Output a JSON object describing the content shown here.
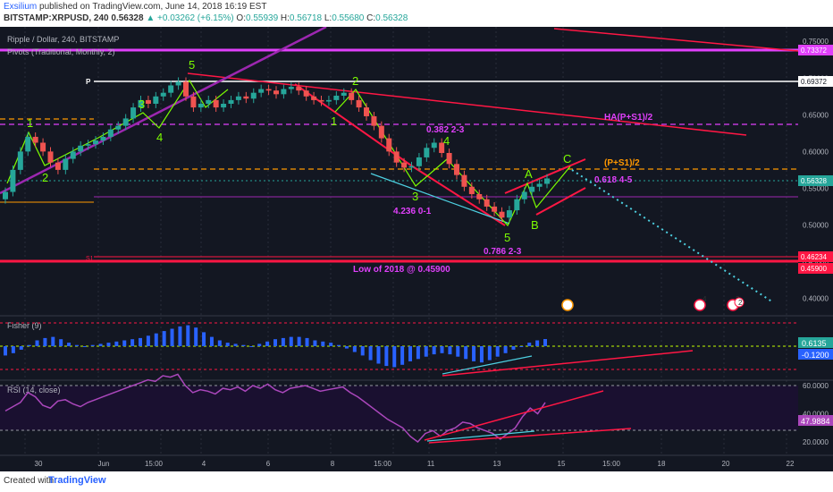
{
  "header": {
    "author": "Exsilium",
    "published": "published on TradingView.com, June 14, 2018 16:19 EST",
    "symbol": "BITSTAMP:XRPUSD, 240",
    "last": "0.56328",
    "change": "▲ +0.03262 (+6.15%)",
    "o_label": "O:",
    "o": "0.55939",
    "h_label": "H:",
    "h": "0.56718",
    "l_label": "L:",
    "l": "0.55680",
    "c_label": "C:",
    "c": "0.56328"
  },
  "legend": {
    "title": "Ripple / Dollar, 240, BITSTAMP",
    "pivots": "Pivots (Traditional, Monthly, 2)"
  },
  "footer": {
    "created": "Created with",
    "brand": "TradingView"
  },
  "colors": {
    "background": "#131722",
    "bull": "#26a69a",
    "bear": "#ef5350",
    "magenta": "#e040fb",
    "orange": "#ff9800",
    "red": "#ff1744",
    "white": "#ffffff",
    "green": "#7cfc00",
    "cyan": "#4dd0e1",
    "purple": "#9c27b0",
    "blue_hist": "#2962ff",
    "rsi": "#ab47bc"
  },
  "chart_data": [
    {
      "type": "candlestick",
      "title": "Ripple / Dollar, 240, BITSTAMP",
      "ylim": [
        0.38,
        0.76
      ],
      "y_ticks": [
        "0.75000",
        "0.70000",
        "0.65000",
        "0.60000",
        "0.55000",
        "0.50000",
        "0.45000",
        "0.40000"
      ],
      "x_ticks": [
        "30",
        "Jun",
        "15:00",
        "4",
        "6",
        "8",
        "15:00",
        "11",
        "13",
        "15",
        "15:00",
        "18",
        "20",
        "22"
      ],
      "price_labels": [
        {
          "text": "0.73372",
          "color": "#e040fb"
        },
        {
          "text": "0.69372",
          "color": "#ffffff"
        },
        {
          "text": "0.56328",
          "color": "#26a69a"
        },
        {
          "text": "0.46234",
          "color": "#ff1744"
        },
        {
          "text": "0.45900",
          "color": "#ff1744"
        }
      ],
      "annotations": [
        {
          "text": "HA(P+S1)/2",
          "color": "#e040fb"
        },
        {
          "text": "(P+S1)/2",
          "color": "#ff9800"
        },
        {
          "text": "0.382 2-3",
          "color": "#e040fb"
        },
        {
          "text": "0.618 4-5",
          "color": "#e040fb"
        },
        {
          "text": "4.236 0-1",
          "color": "#e040fb"
        },
        {
          "text": "0.786 2-3",
          "color": "#e040fb"
        },
        {
          "text": "Low of 2018 @ 0.45900",
          "color": "#e040fb"
        },
        {
          "text": "P",
          "color": "#ffffff"
        },
        {
          "text": "S1",
          "color": "#ff1744"
        }
      ],
      "wave_labels": [
        "1",
        "2",
        "3",
        "4",
        "5",
        "1",
        "2",
        "3",
        "4",
        "5",
        "A",
        "B",
        "C"
      ],
      "markers": [
        "4",
        "2",
        "2"
      ],
      "close": [
        0.545,
        0.575,
        0.6,
        0.62,
        0.612,
        0.6,
        0.585,
        0.575,
        0.59,
        0.6,
        0.608,
        0.61,
        0.615,
        0.62,
        0.63,
        0.635,
        0.645,
        0.66,
        0.67,
        0.665,
        0.675,
        0.68,
        0.69,
        0.695,
        0.675,
        0.66,
        0.665,
        0.67,
        0.66,
        0.665,
        0.67,
        0.675,
        0.672,
        0.68,
        0.685,
        0.683,
        0.678,
        0.685,
        0.688,
        0.683,
        0.675,
        0.67,
        0.668,
        0.67,
        0.676,
        0.68,
        0.67,
        0.66,
        0.648,
        0.635,
        0.618,
        0.6,
        0.585,
        0.578,
        0.58,
        0.592,
        0.605,
        0.612,
        0.598,
        0.583,
        0.568,
        0.552,
        0.542,
        0.535,
        0.525,
        0.518,
        0.51,
        0.52,
        0.535,
        0.545,
        0.552,
        0.556,
        0.5633
      ]
    },
    {
      "type": "histogram",
      "title": "Fisher (9)",
      "price_labels": [
        "0.6135",
        "-0.1200"
      ],
      "values": [
        -0.8,
        -0.6,
        -0.3,
        0.1,
        0.5,
        0.7,
        0.8,
        0.6,
        0.3,
        0.1,
        0.0,
        0.1,
        0.2,
        0.3,
        0.4,
        0.5,
        0.6,
        0.7,
        0.9,
        1.1,
        1.3,
        1.5,
        1.7,
        1.8,
        1.6,
        1.2,
        0.8,
        0.5,
        0.3,
        0.2,
        0.1,
        0.0,
        0.2,
        0.4,
        0.6,
        0.7,
        0.8,
        0.8,
        0.7,
        0.5,
        0.4,
        0.3,
        0.1,
        -0.2,
        -0.5,
        -0.8,
        -1.2,
        -1.5,
        -1.7,
        -1.8,
        -1.6,
        -1.3,
        -1.1,
        -0.9,
        -0.7,
        -0.6,
        -0.7,
        -0.9,
        -1.1,
        -1.3,
        -1.4,
        -1.2,
        -0.9,
        -0.6,
        -0.3,
        0.0,
        0.3,
        0.5,
        0.6135
      ]
    },
    {
      "type": "line",
      "title": "RSI (14, close)",
      "ylim": [
        10,
        70
      ],
      "y_ticks": [
        "60.0000",
        "40.0000",
        "20.0000"
      ],
      "last_label": "47.9884",
      "values": [
        42,
        45,
        48,
        55,
        52,
        46,
        44,
        49,
        50,
        47,
        45,
        48,
        50,
        52,
        54,
        56,
        58,
        60,
        62,
        64,
        63,
        67,
        66,
        68,
        60,
        55,
        57,
        56,
        54,
        58,
        57,
        59,
        56,
        60,
        58,
        61,
        57,
        55,
        58,
        59,
        60,
        58,
        56,
        57,
        58,
        59,
        55,
        52,
        48,
        44,
        40,
        36,
        33,
        30,
        24,
        20,
        26,
        28,
        24,
        28,
        30,
        34,
        33,
        30,
        28,
        26,
        22,
        26,
        30,
        38,
        44,
        40,
        47.9884
      ]
    }
  ]
}
